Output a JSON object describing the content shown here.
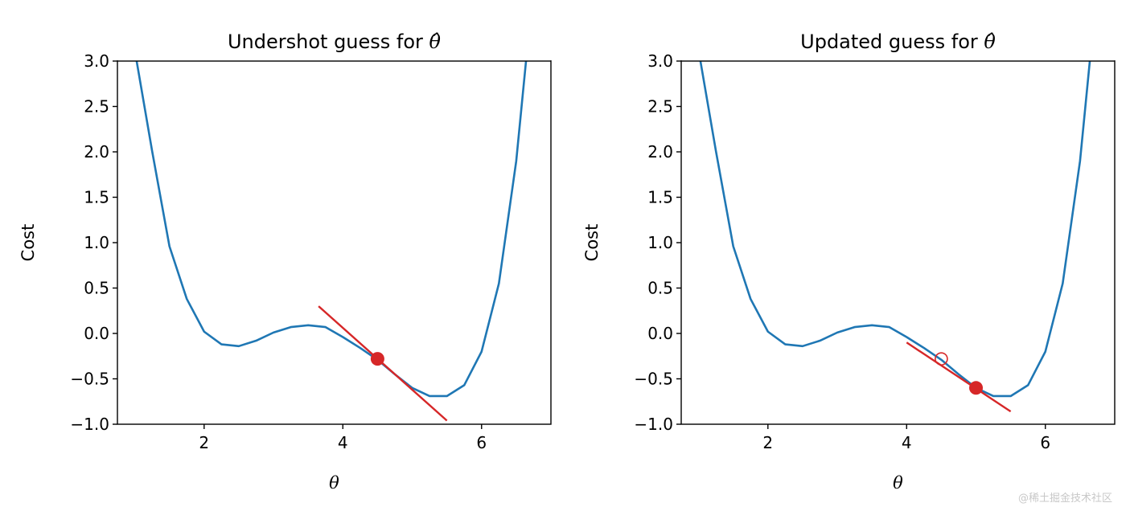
{
  "watermark": "@稀土掘金技术社区",
  "chart_data": [
    {
      "type": "line",
      "title": "Undershot guess for",
      "title_math": "θ̂",
      "xlabel": "θ",
      "ylabel": "Cost",
      "xlim": [
        0.75,
        7.0
      ],
      "ylim": [
        -1.0,
        3.0
      ],
      "xticks": [
        2,
        4,
        6
      ],
      "yticks": [
        -1.0,
        -0.5,
        0.0,
        0.5,
        1.0,
        1.5,
        2.0,
        2.5,
        3.0
      ],
      "ytick_labels": [
        "−1.0",
        "−0.5",
        "0.0",
        "0.5",
        "1.0",
        "1.5",
        "2.0",
        "2.5",
        "3.0"
      ],
      "colors": {
        "curve": "#1f77b4",
        "tangent": "#d62728",
        "point": "#d62728"
      },
      "series": [
        {
          "kind": "curve",
          "x": [
            1.0,
            1.25,
            1.5,
            1.75,
            2.0,
            2.25,
            2.5,
            2.75,
            3.0,
            3.25,
            3.5,
            3.75,
            4.0,
            4.25,
            4.5,
            4.75,
            5.0,
            5.25,
            5.5,
            5.75,
            6.0,
            6.25,
            6.5,
            6.75
          ],
          "y": [
            3.12,
            2.01,
            0.96,
            0.38,
            0.02,
            -0.12,
            -0.14,
            -0.08,
            0.01,
            0.07,
            0.09,
            0.07,
            -0.04,
            -0.16,
            -0.29,
            -0.45,
            -0.6,
            -0.69,
            -0.69,
            -0.57,
            -0.2,
            0.55,
            1.9,
            3.85
          ]
        },
        {
          "kind": "tangent",
          "x": [
            3.65,
            5.5
          ],
          "y": [
            0.3,
            -0.96
          ]
        },
        {
          "kind": "point",
          "filled": true,
          "x": [
            4.5
          ],
          "y": [
            -0.28
          ]
        }
      ]
    },
    {
      "type": "line",
      "title": "Updated guess for",
      "title_math": "θ̂",
      "xlabel": "θ",
      "ylabel": "Cost",
      "xlim": [
        0.75,
        7.0
      ],
      "ylim": [
        -1.0,
        3.0
      ],
      "xticks": [
        2,
        4,
        6
      ],
      "yticks": [
        -1.0,
        -0.5,
        0.0,
        0.5,
        1.0,
        1.5,
        2.0,
        2.5,
        3.0
      ],
      "ytick_labels": [
        "−1.0",
        "−0.5",
        "0.0",
        "0.5",
        "1.0",
        "1.5",
        "2.0",
        "2.5",
        "3.0"
      ],
      "colors": {
        "curve": "#1f77b4",
        "tangent": "#d62728",
        "point": "#d62728"
      },
      "series": [
        {
          "kind": "curve",
          "x": [
            1.0,
            1.25,
            1.5,
            1.75,
            2.0,
            2.25,
            2.5,
            2.75,
            3.0,
            3.25,
            3.5,
            3.75,
            4.0,
            4.25,
            4.5,
            4.75,
            5.0,
            5.25,
            5.5,
            5.75,
            6.0,
            6.25,
            6.5,
            6.75
          ],
          "y": [
            3.12,
            2.01,
            0.96,
            0.38,
            0.02,
            -0.12,
            -0.14,
            -0.08,
            0.01,
            0.07,
            0.09,
            0.07,
            -0.04,
            -0.16,
            -0.29,
            -0.45,
            -0.6,
            -0.69,
            -0.69,
            -0.57,
            -0.2,
            0.55,
            1.9,
            3.85
          ]
        },
        {
          "kind": "tangent",
          "x": [
            4.0,
            5.5
          ],
          "y": [
            -0.1,
            -0.86
          ]
        },
        {
          "kind": "point",
          "filled": false,
          "x": [
            4.5
          ],
          "y": [
            -0.28
          ]
        },
        {
          "kind": "point",
          "filled": true,
          "x": [
            5.0
          ],
          "y": [
            -0.6
          ]
        }
      ]
    }
  ]
}
